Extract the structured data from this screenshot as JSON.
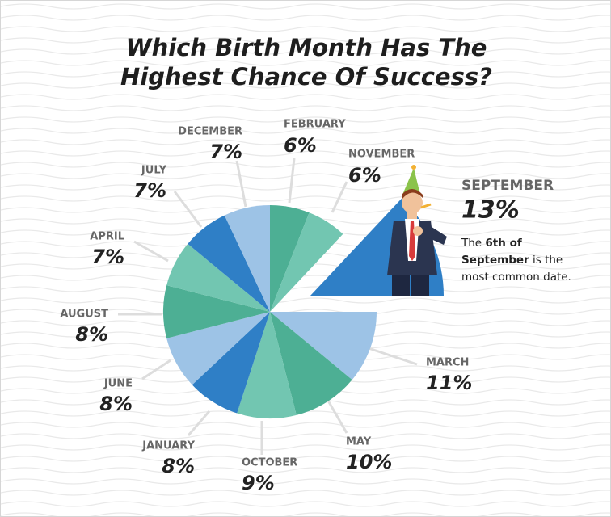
{
  "chart_data": {
    "type": "pie",
    "title": "Which Birth Month Has The Highest Chance Of Success?",
    "categories": [
      "FEBRUARY",
      "NOVEMBER",
      "SEPTEMBER",
      "MARCH",
      "MAY",
      "OCTOBER",
      "JANUARY",
      "JUNE",
      "AUGUST",
      "APRIL",
      "JULY",
      "DECEMBER"
    ],
    "values": [
      6,
      6,
      13,
      11,
      10,
      9,
      8,
      8,
      8,
      7,
      7,
      7
    ],
    "value_labels": [
      "6%",
      "6%",
      "13%",
      "11%",
      "10%",
      "9%",
      "8%",
      "8%",
      "8%",
      "7%",
      "7%",
      "7%"
    ],
    "colors": [
      "#4daf94",
      "#72c6b1",
      "#2f7fc6",
      "#9dc3e6",
      "#4daf94",
      "#72c6b1",
      "#2f7fc6",
      "#9dc3e6",
      "#4daf94",
      "#72c6b1",
      "#2f7fc6",
      "#9dc3e6"
    ],
    "annotation": {
      "before": "The",
      "bold": "6th of September",
      "after": "is the most common date."
    }
  }
}
